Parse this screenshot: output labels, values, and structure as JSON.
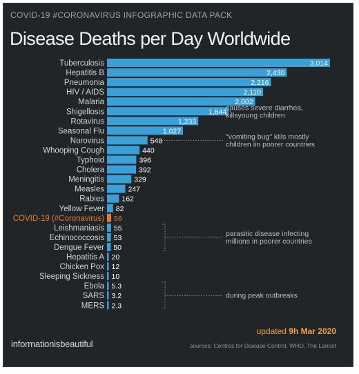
{
  "header": {
    "subtitle": "COVID-19 #CORONAVIRUS INFOGRAPHIC DATA PACK",
    "title": "Disease Deaths per Day Worldwide"
  },
  "chart_data": {
    "type": "bar",
    "orientation": "horizontal",
    "title": "Disease Deaths per Day Worldwide",
    "categories": [
      "Tuberculosis",
      "Hepatitis B",
      "Pneumonia",
      "HIV / AIDS",
      "Malaria",
      "Shigellosis",
      "Rotavirus",
      "Seasonal Flu",
      "Norovirus",
      "Whooping Cough",
      "Typhoid",
      "Cholera",
      "Meningitis",
      "Measles",
      "Rabies",
      "Yellow Fever",
      "COVID-19 (#Coronavirus)",
      "Leishmaniasis",
      "Echinococcosis",
      "Dengue Fever",
      "Hepatitis A",
      "Chicken Pox",
      "Sleeping Sickness",
      "Ebola",
      "SARS",
      "MERS"
    ],
    "values": [
      3014,
      2430,
      2216,
      2110,
      2002,
      1644,
      1233,
      1027,
      548,
      440,
      396,
      392,
      329,
      247,
      162,
      82,
      56,
      55,
      53,
      50,
      20,
      12,
      10,
      5.3,
      3.2,
      2.3
    ],
    "value_labels": [
      "3,014",
      "2,430",
      "2,216",
      "2,110",
      "2,002",
      "1,644",
      "1,233",
      "1,027",
      "548",
      "440",
      "396",
      "392",
      "329",
      "247",
      "162",
      "82",
      "56",
      "55",
      "53",
      "50",
      "20",
      "12",
      "10",
      "5.3",
      "3.2",
      "2.3"
    ],
    "highlight_category": "COVID-19 (#Coronavirus)",
    "xlim": [
      0,
      3014
    ],
    "grid": false,
    "colors": {
      "bar": "#3b9fd8",
      "highlight": "#e07b36",
      "label": "#cfd4d8",
      "value": "#ffffff",
      "background": "#222528"
    },
    "annotations": [
      {
        "text": [
          "causes severe diarrhea,",
          "killsyoung children"
        ],
        "category": "Shigellosis"
      },
      {
        "text": [
          "\"vomiting bug\" kills mostly",
          "children iin poorer countries"
        ],
        "category": "Norovirus"
      },
      {
        "text": [
          "parasitic disease infecting",
          "millions in poorer countries"
        ],
        "categories": [
          "Leishmaniasis",
          "Dengue Fever"
        ]
      },
      {
        "text": [
          "during peak outbreaks"
        ],
        "categories": [
          "Ebola",
          "MERS"
        ]
      }
    ]
  },
  "footer": {
    "updated_prefix": "updated ",
    "updated_date": "9h Mar 2020",
    "brand": "informationisbeautiful",
    "sources": "sources: Centres for Disease Control, WHO, The Lancet"
  }
}
